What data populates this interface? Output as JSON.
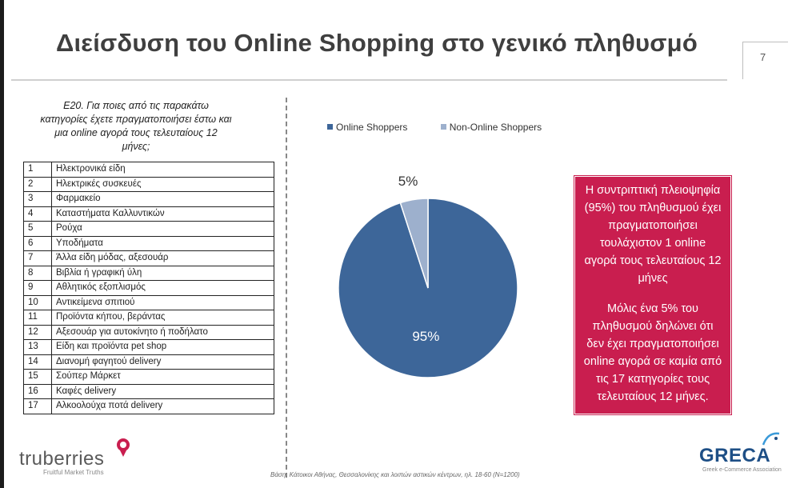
{
  "slide": {
    "title": "Διείσδυση του Online Shopping στο γενικό πληθυσμό",
    "page_number": "7"
  },
  "question": {
    "text": "Ε20. Για ποιες από τις παρακάτω κατηγορίες έχετε πραγματοποιήσει έστω και μια online αγορά τους τελευταίους 12 μήνες;"
  },
  "categories": [
    {
      "num": "1",
      "label": "Ηλεκτρονικά είδη"
    },
    {
      "num": "2",
      "label": "Ηλεκτρικές συσκευές"
    },
    {
      "num": "3",
      "label": "Φαρμακείο"
    },
    {
      "num": "4",
      "label": "Καταστήματα Καλλυντικών"
    },
    {
      "num": "5",
      "label": "Ρούχα"
    },
    {
      "num": "6",
      "label": "Υποδήματα"
    },
    {
      "num": "7",
      "label": "Άλλα είδη μόδας, αξεσουάρ"
    },
    {
      "num": "8",
      "label": "Βιβλία ή γραφική ύλη"
    },
    {
      "num": "9",
      "label": "Αθλητικός εξοπλισμός"
    },
    {
      "num": "10",
      "label": "Αντικείμενα σπιτιού"
    },
    {
      "num": "11",
      "label": "Προϊόντα κήπου, βεράντας"
    },
    {
      "num": "12",
      "label": "Αξεσουάρ για αυτοκίνητο ή ποδήλατο"
    },
    {
      "num": "13",
      "label": "Είδη και προϊόντα pet shop"
    },
    {
      "num": "14",
      "label": "Διανομή φαγητού delivery"
    },
    {
      "num": "15",
      "label": "Σούπερ Μάρκετ"
    },
    {
      "num": "16",
      "label": "Καφές delivery"
    },
    {
      "num": "17",
      "label": "Αλκοολούχα ποτά delivery"
    }
  ],
  "chart_data": {
    "type": "pie",
    "slices": [
      {
        "name": "Online Shoppers",
        "value": 95,
        "label": "95%",
        "color": "#3d6699"
      },
      {
        "name": "Non-Online Shoppers",
        "value": 5,
        "label": "5%",
        "color": "#9db0cd"
      }
    ],
    "legend_position": "top"
  },
  "callout": {
    "paragraph1": "Η συντριπτική πλειοψηφία (95%) του πληθυσμού έχει πραγματοποιήσει τουλάχιστον 1 online αγορά τους τελευταίους 12 μήνες",
    "paragraph2": "Μόλις ένα 5% του πληθυσμού δηλώνει ότι δεν έχει πραγματοποιήσει online αγορά σε καμία από τις 17 κατηγορίες τους τελευταίους 12 μήνες.",
    "background_color": "#c91e4f"
  },
  "footer": {
    "note": "Βάση: Κάτοικοι Αθήνας, Θεσσαλονίκης και λοιπών αστικών κέντρων, ηλ. 18-60 (N=1200)",
    "left_logo": {
      "word": "truberries",
      "tagline": "Fruitful Market Truths"
    },
    "right_logo": {
      "word": "GRECA",
      "tagline": "Greek e-Commerce Association"
    }
  }
}
